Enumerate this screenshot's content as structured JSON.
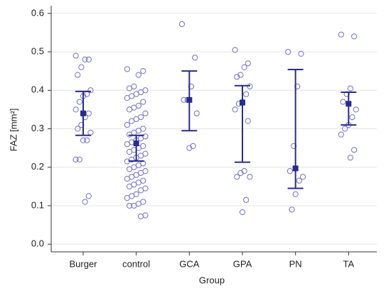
{
  "chart_data": {
    "type": "dotplot",
    "x_label": "Group",
    "y_label": "FAZ [mm²]",
    "categories": [
      "Burger",
      "control",
      "GCA",
      "GPA",
      "PN",
      "TA"
    ],
    "point_color": "#7070c8",
    "mean_color": "#2b2b8a",
    "ylim": [
      -0.02,
      0.62
    ],
    "yticks": [
      {
        "value": 0,
        "label": "0.0"
      },
      0.1,
      0.2,
      0.3,
      0.4,
      0.5,
      0.6
    ],
    "grid": true,
    "groups": [
      {
        "mean": 0.34,
        "upper": 0.397,
        "lower": 0.283,
        "points": [
          0.49,
          0.48,
          0.48,
          0.46,
          0.44,
          0.4,
          0.39,
          0.385,
          0.37,
          0.35,
          0.34,
          0.33,
          0.31,
          0.3,
          0.29,
          0.27,
          0.27,
          0.22,
          0.22,
          0.125,
          0.11
        ]
      },
      {
        "mean": 0.262,
        "upper": 0.283,
        "lower": 0.216,
        "points": [
          0.455,
          0.45,
          0.44,
          0.41,
          0.405,
          0.4,
          0.395,
          0.39,
          0.385,
          0.38,
          0.37,
          0.36,
          0.355,
          0.35,
          0.34,
          0.33,
          0.325,
          0.32,
          0.31,
          0.3,
          0.295,
          0.29,
          0.285,
          0.28,
          0.275,
          0.27,
          0.265,
          0.26,
          0.255,
          0.25,
          0.245,
          0.24,
          0.235,
          0.23,
          0.225,
          0.22,
          0.215,
          0.21,
          0.205,
          0.2,
          0.195,
          0.19,
          0.185,
          0.18,
          0.175,
          0.17,
          0.165,
          0.16,
          0.155,
          0.15,
          0.145,
          0.14,
          0.13,
          0.125,
          0.12,
          0.11,
          0.105,
          0.1,
          0.1,
          0.075,
          0.072
        ]
      },
      {
        "mean": 0.375,
        "upper": 0.45,
        "lower": 0.295,
        "points": [
          0.572,
          0.485,
          0.41,
          0.375,
          0.375,
          0.34,
          0.255,
          0.25
        ]
      },
      {
        "mean": 0.368,
        "upper": 0.412,
        "lower": 0.213,
        "points": [
          0.505,
          0.47,
          0.46,
          0.44,
          0.435,
          0.41,
          0.39,
          0.37,
          0.365,
          0.35,
          0.32,
          0.19,
          0.185,
          0.175,
          0.175,
          0.115,
          0.083
        ]
      },
      {
        "mean": 0.197,
        "upper": 0.454,
        "lower": 0.145,
        "points": [
          0.5,
          0.495,
          0.41,
          0.255,
          0.19,
          0.175,
          0.165,
          0.13,
          0.09
        ]
      },
      {
        "mean": 0.365,
        "upper": 0.395,
        "lower": 0.31,
        "points": [
          0.545,
          0.54,
          0.405,
          0.39,
          0.37,
          0.35,
          0.33,
          0.31,
          0.3,
          0.285,
          0.245,
          0.225
        ]
      }
    ]
  }
}
